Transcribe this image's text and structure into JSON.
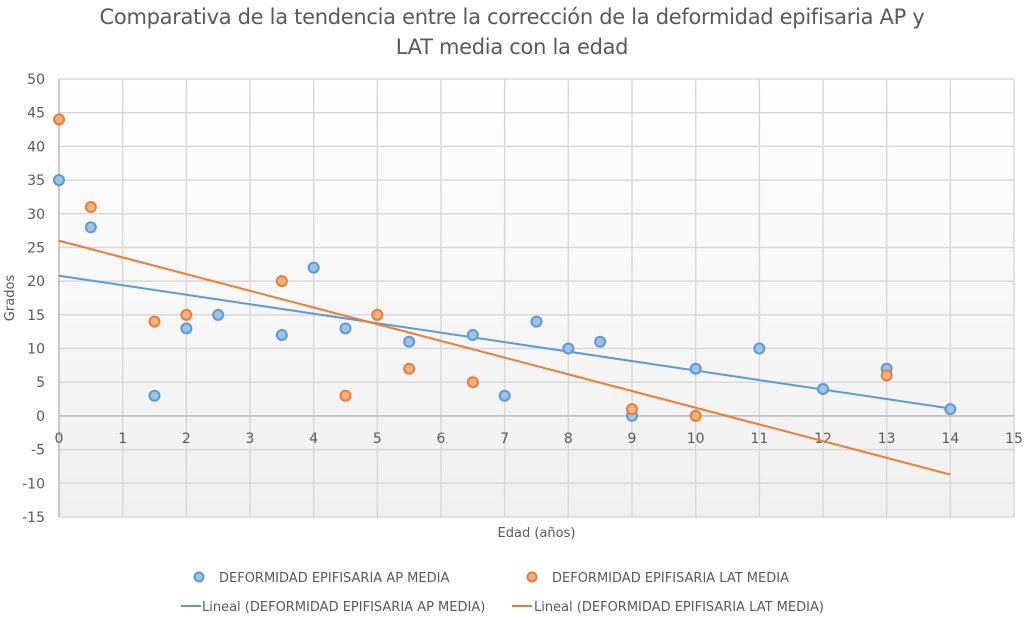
{
  "chart_data": {
    "type": "scatter",
    "title_lines": [
      "Comparativa de la tendencia entre la corrección de la deformidad epifisaria AP y",
      "LAT media con la edad"
    ],
    "xlabel": "Edad (años)",
    "ylabel": "Grados",
    "xlim": [
      0,
      15
    ],
    "ylim": [
      -15,
      50
    ],
    "x_ticks": [
      0,
      1,
      2,
      3,
      4,
      5,
      6,
      7,
      8,
      9,
      10,
      11,
      12,
      13,
      14,
      15
    ],
    "y_ticks": [
      -15,
      -10,
      -5,
      0,
      5,
      10,
      15,
      20,
      25,
      30,
      35,
      40,
      45,
      50
    ],
    "grid": true,
    "legend_position": "bottom",
    "series": [
      {
        "name": "DEFORMIDAD EPIFISARIA AP MEDIA",
        "color": "#5B9BD5",
        "points": [
          [
            0,
            35
          ],
          [
            0.5,
            28
          ],
          [
            1.5,
            3
          ],
          [
            2,
            13
          ],
          [
            2.5,
            15
          ],
          [
            3.5,
            12
          ],
          [
            4,
            22
          ],
          [
            4.5,
            13
          ],
          [
            5,
            15
          ],
          [
            5.5,
            11
          ],
          [
            6.5,
            12
          ],
          [
            7,
            3
          ],
          [
            7.5,
            14
          ],
          [
            8,
            10
          ],
          [
            8.5,
            11
          ],
          [
            9,
            0
          ],
          [
            10,
            7
          ],
          [
            11,
            10
          ],
          [
            12,
            4
          ],
          [
            13,
            7
          ],
          [
            14,
            1
          ]
        ]
      },
      {
        "name": "DEFORMIDAD EPIFISARIA LAT MEDIA",
        "color": "#ED7D31",
        "points": [
          [
            0,
            44
          ],
          [
            0.5,
            31
          ],
          [
            1.5,
            14
          ],
          [
            2,
            15
          ],
          [
            3.5,
            20
          ],
          [
            4.5,
            3
          ],
          [
            5,
            15
          ],
          [
            5.5,
            7
          ],
          [
            6.5,
            5
          ],
          [
            9,
            1
          ],
          [
            10,
            0
          ],
          [
            13,
            6
          ]
        ]
      }
    ],
    "trendlines": [
      {
        "name": "Lineal (DEFORMIDAD EPIFISARIA AP MEDIA)",
        "color": "#5B9BD5",
        "type": "linear",
        "x_range": [
          0,
          14
        ],
        "y_at_start": 20.8,
        "y_at_end": 1.1
      },
      {
        "name": "Lineal (DEFORMIDAD EPIFISARIA LAT MEDIA)",
        "color": "#ED7D31",
        "type": "linear",
        "x_range": [
          0,
          14
        ],
        "y_at_start": 26.0,
        "y_at_end": -8.7
      }
    ]
  }
}
